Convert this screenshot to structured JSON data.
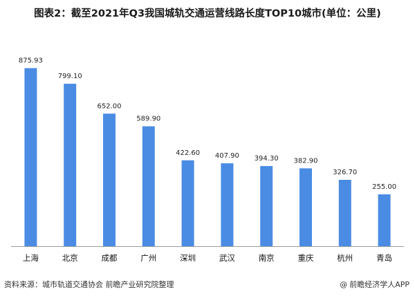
{
  "chart_data": {
    "type": "bar",
    "title": "图表2：截至2021年Q3我国城轨交通运营线路长度TOP10城市(单位：公里)",
    "categories": [
      "上海",
      "北京",
      "成都",
      "广州",
      "深圳",
      "武汉",
      "南京",
      "重庆",
      "杭州",
      "青岛"
    ],
    "values": [
      875.93,
      799.1,
      652.0,
      589.9,
      422.6,
      407.9,
      394.3,
      382.9,
      326.7,
      255.0
    ],
    "value_labels": [
      "875.93",
      "799.10",
      "652.00",
      "589.90",
      "422.60",
      "407.90",
      "394.30",
      "382.90",
      "326.70",
      "255.00"
    ],
    "xlabel": "",
    "ylabel": "",
    "ylim": [
      0,
      1000
    ],
    "grid": false,
    "legend": "none",
    "bar_color": "#4a8ce4"
  },
  "footer": {
    "source": "资料来源：城市轨道交通协会 前瞻产业研究院整理",
    "credit_symbol": "@",
    "credit": "前瞻经济学人APP"
  }
}
